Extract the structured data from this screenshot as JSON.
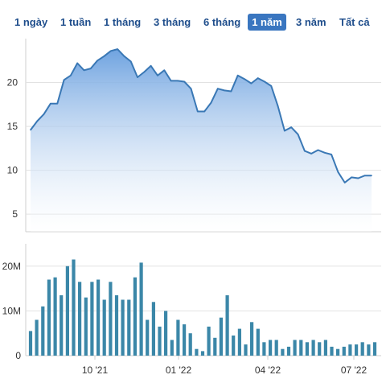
{
  "range_selector": {
    "buttons": [
      "1 ngày",
      "1 tuần",
      "1 tháng",
      "3 tháng",
      "6 tháng",
      "1 năm",
      "3 năm",
      "Tất cả"
    ],
    "active": "1 năm"
  },
  "colors": {
    "line": "#3a78b5",
    "area_top": "#6fa3e0",
    "area_bottom": "#ffffff",
    "bars": "#3b87a8",
    "grid": "#e2e2e2",
    "axis_text": "#333333",
    "active_button": "#3a76c0",
    "button_text": "#1f4e8c"
  },
  "chart_data": [
    {
      "type": "area",
      "yticks": [
        5,
        10,
        15,
        20
      ],
      "ylim": [
        3,
        25
      ],
      "grid": true,
      "values": [
        14.6,
        15.6,
        16.4,
        17.6,
        17.6,
        20.3,
        20.8,
        22.2,
        21.4,
        21.6,
        22.5,
        23.0,
        23.6,
        23.8,
        23.0,
        22.4,
        20.6,
        21.2,
        21.9,
        20.8,
        21.4,
        20.2,
        20.2,
        20.1,
        19.3,
        16.7,
        16.7,
        17.7,
        19.3,
        19.1,
        19.0,
        20.8,
        20.4,
        19.9,
        20.5,
        20.1,
        19.6,
        17.3,
        14.5,
        14.9,
        14.1,
        12.2,
        11.9,
        12.3,
        12.0,
        11.8,
        9.8,
        8.6,
        9.2,
        9.1,
        9.4,
        9.4
      ]
    },
    {
      "type": "bar",
      "yticks": [
        "0",
        "10M",
        "20M"
      ],
      "ylim": [
        0,
        25
      ],
      "grid": true,
      "xticks": [
        "10 '21",
        "01 '22",
        "04 '22",
        "07 '22"
      ],
      "values": [
        5.5,
        8.0,
        11.0,
        17.0,
        17.5,
        13.5,
        20.0,
        21.5,
        16.5,
        13.0,
        16.5,
        17.0,
        12.5,
        16.5,
        13.5,
        12.5,
        12.5,
        17.5,
        20.8,
        8.0,
        12.0,
        6.5,
        10.0,
        3.5,
        8.0,
        7.0,
        5.0,
        1.5,
        1.0,
        6.5,
        4.0,
        8.5,
        13.5,
        4.5,
        6.0,
        2.5,
        7.5,
        6.0,
        3.0,
        3.5,
        3.5,
        1.5,
        2.0,
        3.5,
        3.5,
        3.0,
        3.5,
        3.0,
        3.5,
        2.0,
        1.5,
        2.0,
        2.5,
        2.5,
        3.0,
        2.5,
        3.0
      ]
    }
  ]
}
